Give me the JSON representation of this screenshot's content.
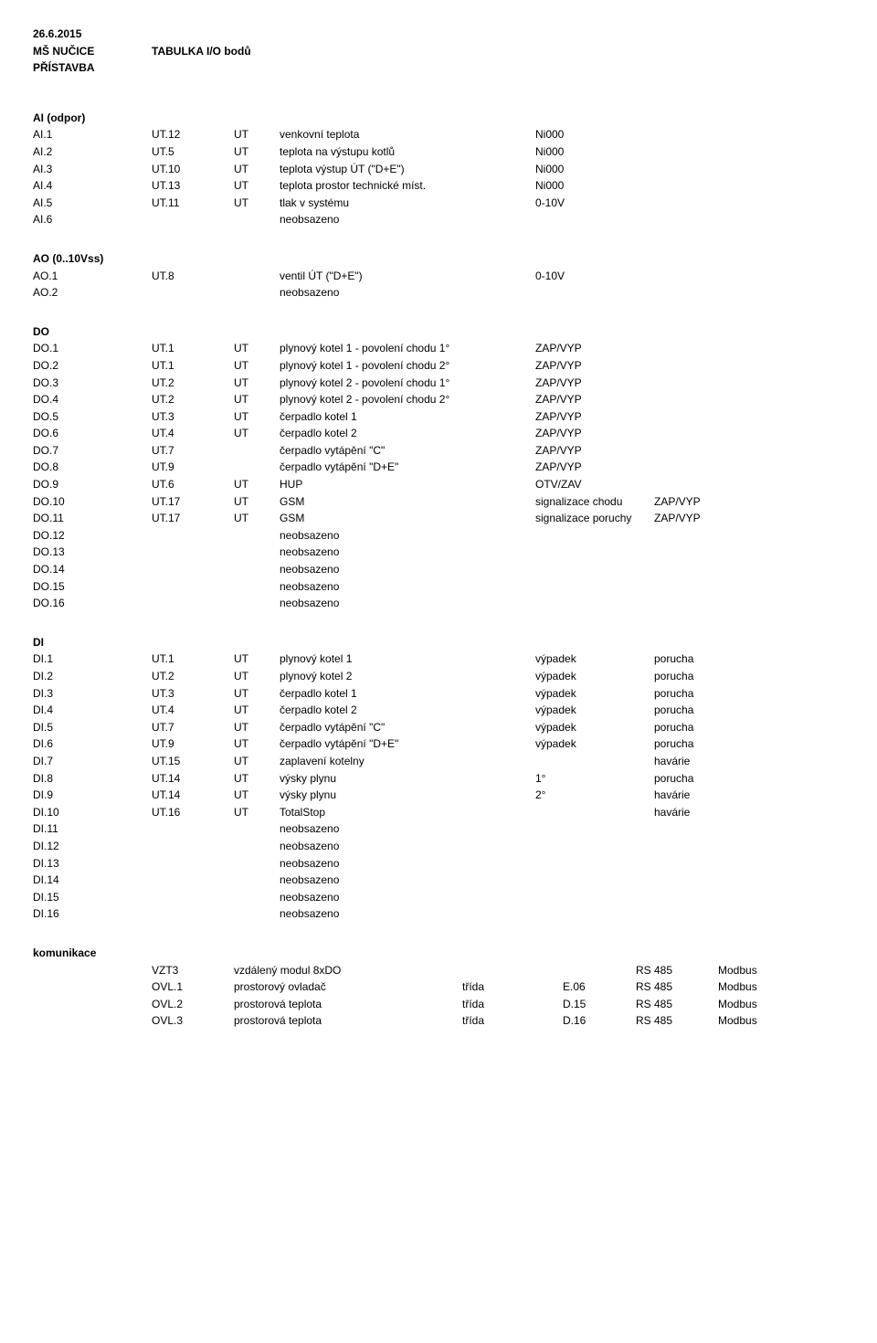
{
  "header": {
    "date": "26.6.2015",
    "site": "MŠ NUČICE",
    "title": "TABULKA I/O bodů",
    "sub": "PŘÍSTAVBA"
  },
  "sections": {
    "ai_title": "AI (odpor)",
    "ao_title": "AO (0..10Vss)",
    "do_title": "DO",
    "di_title": "DI",
    "kom_title": "komunikace"
  },
  "ai": [
    {
      "id": "AI.1",
      "ref": "UT.12",
      "mod": "UT",
      "desc": "venkovní teplota",
      "v1": "Ni000"
    },
    {
      "id": "AI.2",
      "ref": "UT.5",
      "mod": "UT",
      "desc": "teplota na výstupu kotlů",
      "v1": "Ni000"
    },
    {
      "id": "AI.3",
      "ref": "UT.10",
      "mod": "UT",
      "desc": "teplota výstup ÚT (\"D+E\")",
      "v1": "Ni000"
    },
    {
      "id": "AI.4",
      "ref": "UT.13",
      "mod": "UT",
      "desc": "teplota prostor technické míst.",
      "v1": "Ni000"
    },
    {
      "id": "AI.5",
      "ref": "UT.11",
      "mod": "UT",
      "desc": "tlak v systému",
      "v1": "0-10V"
    },
    {
      "id": "AI.6",
      "ref": "",
      "mod": "",
      "desc": "neobsazeno",
      "v1": ""
    }
  ],
  "ao": [
    {
      "id": "AO.1",
      "ref": "UT.8",
      "mod": "",
      "desc": "ventil ÚT (\"D+E\")",
      "v1": "0-10V"
    },
    {
      "id": "AO.2",
      "ref": "",
      "mod": "",
      "desc": "neobsazeno",
      "v1": ""
    }
  ],
  "do": [
    {
      "id": "DO.1",
      "ref": "UT.1",
      "mod": "UT",
      "desc": "plynový kotel 1 - povolení chodu 1°",
      "v1": "ZAP/VYP"
    },
    {
      "id": "DO.2",
      "ref": "UT.1",
      "mod": "UT",
      "desc": "plynový kotel 1 - povolení chodu 2°",
      "v1": "ZAP/VYP"
    },
    {
      "id": "DO.3",
      "ref": "UT.2",
      "mod": "UT",
      "desc": "plynový kotel 2 - povolení chodu 1°",
      "v1": "ZAP/VYP"
    },
    {
      "id": "DO.4",
      "ref": "UT.2",
      "mod": "UT",
      "desc": "plynový kotel 2 - povolení chodu 2°",
      "v1": "ZAP/VYP"
    },
    {
      "id": "DO.5",
      "ref": "UT.3",
      "mod": "UT",
      "desc": "čerpadlo kotel 1",
      "v1": "ZAP/VYP"
    },
    {
      "id": "DO.6",
      "ref": "UT.4",
      "mod": "UT",
      "desc": "čerpadlo kotel 2",
      "v1": "ZAP/VYP"
    },
    {
      "id": "DO.7",
      "ref": "UT.7",
      "mod": "",
      "desc": "čerpadlo vytápění \"C\"",
      "v1": "ZAP/VYP"
    },
    {
      "id": "DO.8",
      "ref": "UT.9",
      "mod": "",
      "desc": "čerpadlo vytápění \"D+E\"",
      "v1": "ZAP/VYP"
    },
    {
      "id": "DO.9",
      "ref": "UT.6",
      "mod": "UT",
      "desc": "HUP",
      "v1": "OTV/ZAV"
    },
    {
      "id": "DO.10",
      "ref": "UT.17",
      "mod": "UT",
      "desc": "GSM",
      "v1": "signalizace chodu",
      "v2": "ZAP/VYP"
    },
    {
      "id": "DO.11",
      "ref": "UT.17",
      "mod": "UT",
      "desc": "GSM",
      "v1": "signalizace poruchy",
      "v2": "ZAP/VYP"
    },
    {
      "id": "DO.12",
      "ref": "",
      "mod": "",
      "desc": "neobsazeno",
      "v1": ""
    },
    {
      "id": "DO.13",
      "ref": "",
      "mod": "",
      "desc": "neobsazeno",
      "v1": ""
    },
    {
      "id": "DO.14",
      "ref": "",
      "mod": "",
      "desc": "neobsazeno",
      "v1": ""
    },
    {
      "id": "DO.15",
      "ref": "",
      "mod": "",
      "desc": "neobsazeno",
      "v1": ""
    },
    {
      "id": "DO.16",
      "ref": "",
      "mod": "",
      "desc": "neobsazeno",
      "v1": ""
    }
  ],
  "di": [
    {
      "id": "DI.1",
      "ref": "UT.1",
      "mod": "UT",
      "desc": "plynový kotel 1",
      "v1": "výpadek",
      "v2": "porucha"
    },
    {
      "id": "DI.2",
      "ref": "UT.2",
      "mod": "UT",
      "desc": "plynový kotel 2",
      "v1": "výpadek",
      "v2": "porucha"
    },
    {
      "id": "DI.3",
      "ref": "UT.3",
      "mod": "UT",
      "desc": "čerpadlo kotel 1",
      "v1": "výpadek",
      "v2": "porucha"
    },
    {
      "id": "DI.4",
      "ref": "UT.4",
      "mod": "UT",
      "desc": "čerpadlo kotel 2",
      "v1": "výpadek",
      "v2": "porucha"
    },
    {
      "id": "DI.5",
      "ref": "UT.7",
      "mod": "UT",
      "desc": "čerpadlo vytápění \"C\"",
      "v1": "výpadek",
      "v2": "porucha"
    },
    {
      "id": "DI.6",
      "ref": "UT.9",
      "mod": "UT",
      "desc": "čerpadlo vytápění \"D+E\"",
      "v1": "výpadek",
      "v2": "porucha"
    },
    {
      "id": "DI.7",
      "ref": "UT.15",
      "mod": "UT",
      "desc": "zaplavení kotelny",
      "v1": "",
      "v2": "havárie"
    },
    {
      "id": "DI.8",
      "ref": "UT.14",
      "mod": "UT",
      "desc": "výsky plynu",
      "v1": "1°",
      "v2": "porucha"
    },
    {
      "id": "DI.9",
      "ref": "UT.14",
      "mod": "UT",
      "desc": "výsky plynu",
      "v1": "2°",
      "v2": "havárie"
    },
    {
      "id": "DI.10",
      "ref": "UT.16",
      "mod": "UT",
      "desc": "TotalStop",
      "v1": "",
      "v2": "havárie"
    },
    {
      "id": "DI.11",
      "ref": "",
      "mod": "",
      "desc": "neobsazeno",
      "v1": "",
      "v2": ""
    },
    {
      "id": "DI.12",
      "ref": "",
      "mod": "",
      "desc": "neobsazeno",
      "v1": "",
      "v2": ""
    },
    {
      "id": "DI.13",
      "ref": "",
      "mod": "",
      "desc": "neobsazeno",
      "v1": "",
      "v2": ""
    },
    {
      "id": "DI.14",
      "ref": "",
      "mod": "",
      "desc": "neobsazeno",
      "v1": "",
      "v2": ""
    },
    {
      "id": "DI.15",
      "ref": "",
      "mod": "",
      "desc": "neobsazeno",
      "v1": "",
      "v2": ""
    },
    {
      "id": "DI.16",
      "ref": "",
      "mod": "",
      "desc": "neobsazeno",
      "v1": "",
      "v2": ""
    }
  ],
  "kom": [
    {
      "ref": "VZT3",
      "desc": "vzdálený modul 8xDO",
      "c3": "",
      "c4": "",
      "c5": "RS 485",
      "c6": "Modbus"
    },
    {
      "ref": "OVL.1",
      "desc": "prostorový ovladač",
      "c3": "třída",
      "c4": "E.06",
      "c5": "RS 485",
      "c6": "Modbus"
    },
    {
      "ref": "OVL.2",
      "desc": "prostorová teplota",
      "c3": "třída",
      "c4": "D.15",
      "c5": "RS 485",
      "c6": "Modbus"
    },
    {
      "ref": "OVL.3",
      "desc": "prostorová teplota",
      "c3": "třída",
      "c4": "D.16",
      "c5": "RS 485",
      "c6": "Modbus"
    }
  ]
}
